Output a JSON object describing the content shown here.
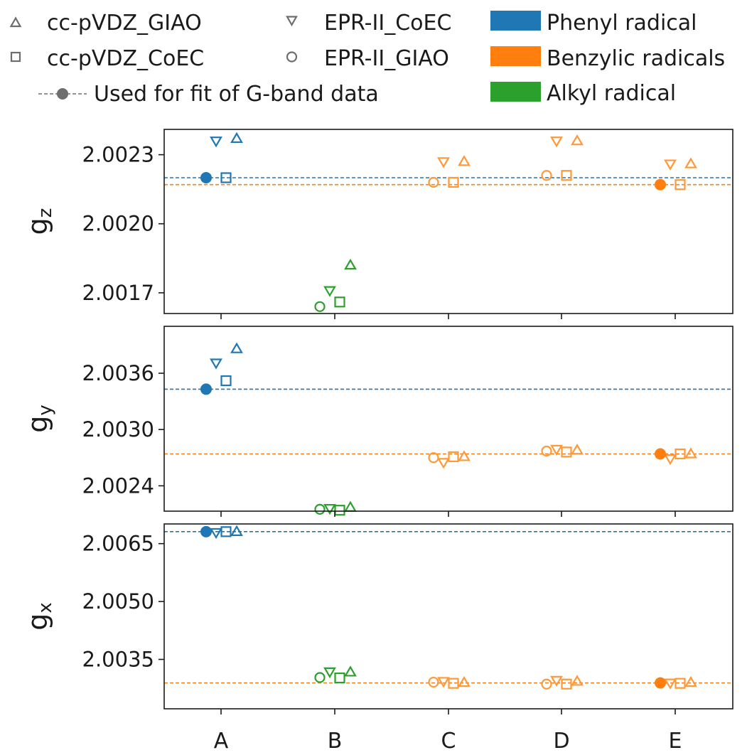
{
  "legend": {
    "markers": [
      {
        "label": "cc-pVDZ_GIAO",
        "marker": "triangle-up"
      },
      {
        "label": "EPR-II_CoEC",
        "marker": "triangle-down"
      },
      {
        "label": "cc-pVDZ_CoEC",
        "marker": "square"
      },
      {
        "label": "EPR-II_GIAO",
        "marker": "circle"
      },
      {
        "label": "Used for fit of G-band data",
        "marker": "filled-circle-dashed-line"
      }
    ],
    "classes": [
      {
        "label": "Phenyl radical",
        "color": "#1f77b4"
      },
      {
        "label": "Benzylic radicals",
        "color": "#ff7f0e"
      },
      {
        "label": "Alkyl radical",
        "color": "#2ca02c"
      }
    ],
    "marker_color": "#6e6e6e"
  },
  "chart_data": [
    {
      "type": "scatter",
      "ylabel": "g",
      "ylabel_sub": "z",
      "categories": [
        "A",
        "B",
        "C",
        "D",
        "E"
      ],
      "category_class": [
        "Phenyl radical",
        "Alkyl radical",
        "Benzylic radicals",
        "Benzylic radicals",
        "Benzylic radicals"
      ],
      "ylim": [
        2.00161,
        2.00241
      ],
      "yticks": [
        2.0017,
        2.002,
        2.0023
      ],
      "ytick_labels": [
        "2.0017",
        "2.0020",
        "2.0023"
      ],
      "series": [
        {
          "name": "EPR-II_GIAO",
          "values": [
            2.0022,
            2.00164,
            2.00218,
            2.00221,
            2.00217
          ]
        },
        {
          "name": "EPR-II_CoEC",
          "values": [
            2.00236,
            2.00171,
            2.00227,
            2.00236,
            2.00226
          ]
        },
        {
          "name": "cc-pVDZ_CoEC",
          "values": [
            2.0022,
            2.00166,
            2.00218,
            2.00221,
            2.00217
          ]
        },
        {
          "name": "cc-pVDZ_GIAO",
          "values": [
            2.00237,
            2.00182,
            2.00227,
            2.00236,
            2.00226
          ]
        }
      ],
      "fit_used": [
        {
          "category": "A",
          "value": 2.0022,
          "color": "#1f77b4"
        },
        {
          "category": "E",
          "value": 2.00217,
          "color": "#ff7f0e"
        }
      ],
      "hlines": [
        {
          "value": 2.0022,
          "color": "#1f77b4"
        },
        {
          "value": 2.00217,
          "color": "#ff7f0e"
        }
      ]
    },
    {
      "type": "scatter",
      "ylabel": "g",
      "ylabel_sub": "y",
      "categories": [
        "A",
        "B",
        "C",
        "D",
        "E"
      ],
      "category_class": [
        "Phenyl radical",
        "Alkyl radical",
        "Benzylic radicals",
        "Benzylic radicals",
        "Benzylic radicals"
      ],
      "ylim": [
        2.00213,
        2.0041
      ],
      "yticks": [
        2.0024,
        2.003,
        2.0036
      ],
      "ytick_labels": [
        "2.0024",
        "2.0030",
        "2.0036"
      ],
      "series": [
        {
          "name": "EPR-II_GIAO",
          "values": [
            2.00343,
            2.00215,
            2.0027,
            2.00277,
            2.00274
          ]
        },
        {
          "name": "EPR-II_CoEC",
          "values": [
            2.00371,
            2.00216,
            2.00265,
            2.00279,
            2.00269
          ]
        },
        {
          "name": "cc-pVDZ_CoEC",
          "values": [
            2.00352,
            2.00214,
            2.00271,
            2.00276,
            2.00274
          ]
        },
        {
          "name": "cc-pVDZ_GIAO",
          "values": [
            2.00386,
            2.00217,
            2.00271,
            2.00278,
            2.00274
          ]
        }
      ],
      "fit_used": [
        {
          "category": "A",
          "value": 2.00343,
          "color": "#1f77b4"
        },
        {
          "category": "E",
          "value": 2.00274,
          "color": "#ff7f0e"
        }
      ],
      "hlines": [
        {
          "value": 2.00343,
          "color": "#1f77b4"
        },
        {
          "value": 2.00274,
          "color": "#ff7f0e"
        }
      ]
    },
    {
      "type": "scatter",
      "ylabel": "g",
      "ylabel_sub": "x",
      "categories": [
        "A",
        "B",
        "C",
        "D",
        "E"
      ],
      "category_class": [
        "Phenyl radical",
        "Alkyl radical",
        "Benzylic radicals",
        "Benzylic radicals",
        "Benzylic radicals"
      ],
      "ylim": [
        2.00222,
        2.00701
      ],
      "yticks": [
        2.0035,
        2.005,
        2.0065
      ],
      "ytick_labels": [
        "2.0035",
        "2.0050",
        "2.0065"
      ],
      "series": [
        {
          "name": "EPR-II_GIAO",
          "values": [
            2.00681,
            2.00303,
            2.00291,
            2.00286,
            2.00289
          ]
        },
        {
          "name": "EPR-II_CoEC",
          "values": [
            2.00679,
            2.00318,
            2.00293,
            2.00296,
            2.00289
          ]
        },
        {
          "name": "cc-pVDZ_CoEC",
          "values": [
            2.00681,
            2.00302,
            2.00288,
            2.00286,
            2.00288
          ]
        },
        {
          "name": "cc-pVDZ_GIAO",
          "values": [
            2.00681,
            2.00317,
            2.0029,
            2.00293,
            2.0029
          ]
        }
      ],
      "fit_used": [
        {
          "category": "A",
          "value": 2.00681,
          "color": "#1f77b4"
        },
        {
          "category": "E",
          "value": 2.00289,
          "color": "#ff7f0e"
        }
      ],
      "hlines": [
        {
          "value": 2.00681,
          "color": "#1f77b4"
        },
        {
          "value": 2.00289,
          "color": "#ff7f0e"
        }
      ]
    }
  ]
}
